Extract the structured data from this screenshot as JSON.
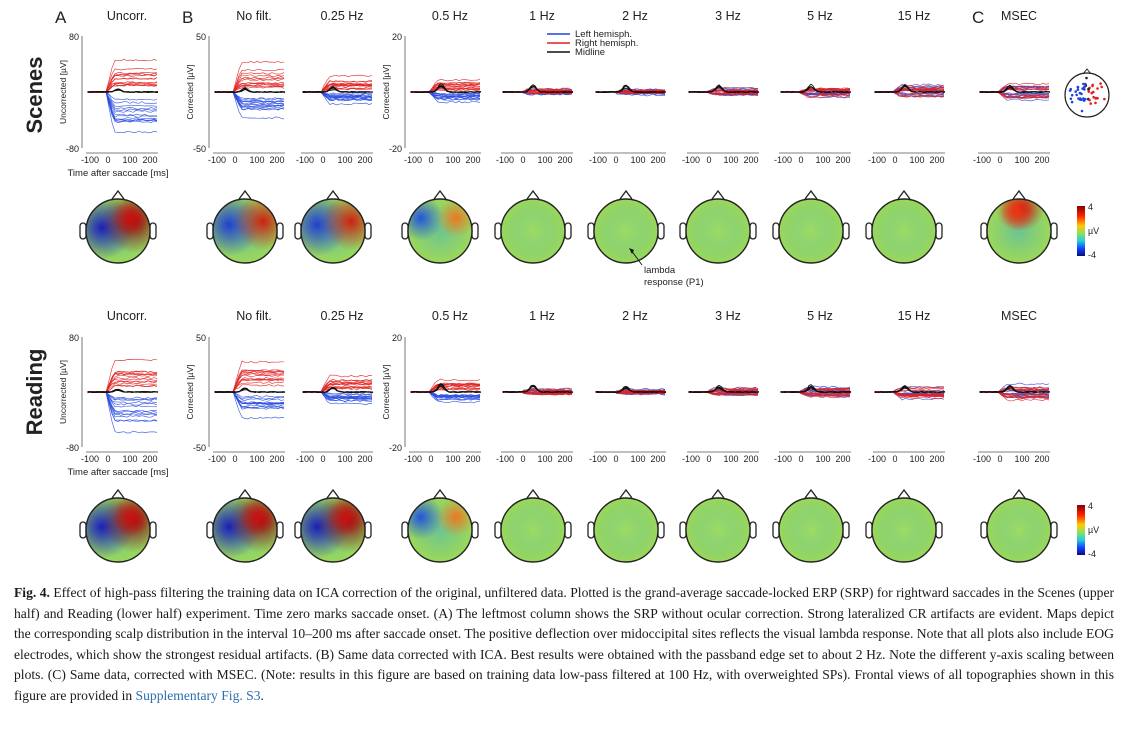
{
  "figure": {
    "panel_letters": [
      "A",
      "B",
      "C"
    ],
    "conditions": [
      {
        "id": "scenes",
        "label": "Scenes",
        "ylim": [
          -80,
          80,
          50,
          20
        ]
      },
      {
        "id": "reading",
        "label": "Reading",
        "ylim": [
          -80,
          80,
          50,
          20
        ]
      }
    ],
    "column_titles": [
      "Uncorr.",
      "No filt.",
      "0.25 Hz",
      "0.5 Hz",
      "1 Hz",
      "2 Hz",
      "3 Hz",
      "5 Hz",
      "15 Hz",
      "MSEC"
    ],
    "ylabels": {
      "uncorrected": "Uncorrected [µV]",
      "corrected": "Corrected [µV]"
    },
    "xlabel": "Time after saccade [ms]",
    "x_ticks": [
      "-100",
      "0",
      "100",
      "200"
    ],
    "y_ticks": {
      "uncorr": [
        "80",
        "-80"
      ],
      "nofilt": [
        "50",
        "-50"
      ],
      "half": [
        "20",
        "-20"
      ]
    },
    "legend": [
      {
        "label": "Left hemisph.",
        "color": "#2244dd"
      },
      {
        "label": "Right hemisph.",
        "color": "#dd2222"
      },
      {
        "label": "Midline",
        "color": "#111111"
      }
    ],
    "colorbar": {
      "max": "4",
      "min": "-4",
      "unit": "µV"
    },
    "annotation": "lambda\nresponse (P1)"
  },
  "caption": {
    "label": "Fig. 4.",
    "text": "Effect of high-pass filtering the training data on ICA correction of the original, unfiltered data. Plotted is the grand-average saccade-locked ERP (SRP) for rightward saccades in the Scenes (upper half) and Reading (lower half) experiment. Time zero marks saccade onset. (A) The leftmost column shows the SRP without ocular correction. Strong lateralized CR artifacts are evident. Maps depict the corresponding scalp distribution in the interval 10–200 ms after saccade onset. The positive deflection over midoccipital sites reflects the visual lambda response. Note that all plots also include EOG electrodes, which show the strongest residual artifacts. (B) Same data corrected with ICA. Best results were obtained with the passband edge set to about 2 Hz. Note the different y-axis scaling between plots. (C) Same data, corrected with MSEC. (Note: results in this figure are based on training data low-pass filtered at 100 Hz, with overweighted SPs). Frontal views of all topographies shown in this figure are provided in ",
    "link": "Supplementary Fig. S3",
    "end": "."
  }
}
